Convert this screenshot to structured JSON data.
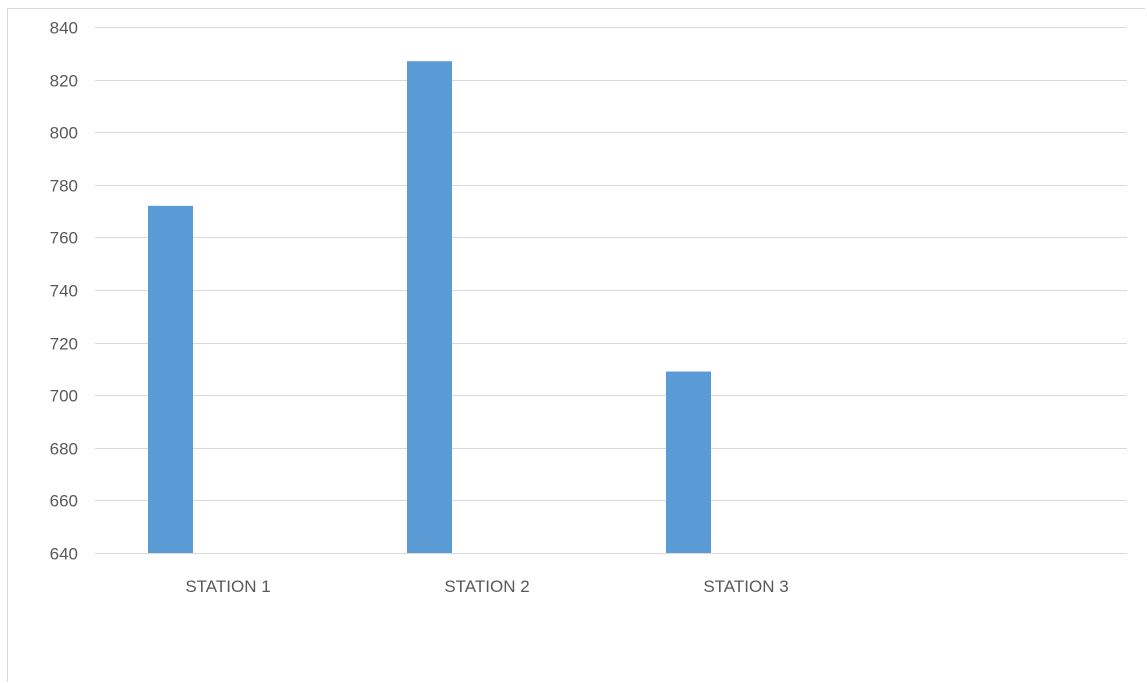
{
  "chart_data": {
    "type": "bar",
    "categories": [
      "STATION 1",
      "STATION 2",
      "STATION 3"
    ],
    "values": [
      772,
      827,
      709
    ],
    "ylim": [
      640,
      840
    ],
    "yticks": [
      640,
      660,
      680,
      700,
      720,
      740,
      760,
      780,
      800,
      820,
      840
    ],
    "grid": true,
    "bar_color": "#5b9bd5",
    "grid_color": "#d9d9d9",
    "title": "",
    "xlabel": "",
    "ylabel": ""
  }
}
